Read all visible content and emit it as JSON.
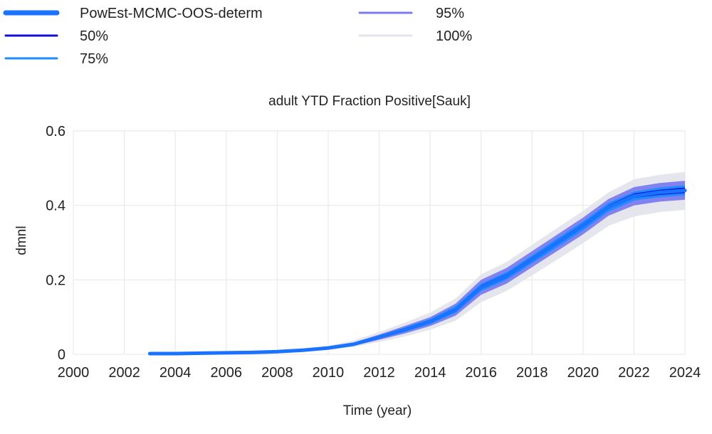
{
  "chart_data": {
    "type": "line",
    "title": "adult YTD Fraction Positive[Sauk]",
    "xlabel": "Time (year)",
    "ylabel": "dmnl",
    "xlim": [
      2000,
      2024
    ],
    "ylim": [
      0,
      0.6
    ],
    "x_ticks": [
      "2000",
      "2002",
      "2004",
      "2006",
      "2008",
      "2010",
      "2012",
      "2014",
      "2016",
      "2018",
      "2020",
      "2022",
      "2024"
    ],
    "y_ticks": [
      "0",
      "0.2",
      "0.4",
      "0.6"
    ],
    "grid": true,
    "legend_placement": "top",
    "x": [
      2003,
      2004,
      2005,
      2006,
      2007,
      2008,
      2009,
      2010,
      2011,
      2012,
      2013,
      2014,
      2015,
      2016,
      2017,
      2018,
      2019,
      2020,
      2021,
      2022,
      2023,
      2024
    ],
    "series": [
      {
        "name": "PowEst-MCMC-OOS-determ",
        "color": "#1a73ff",
        "style": "line",
        "values": [
          0.002,
          0.002,
          0.003,
          0.004,
          0.005,
          0.007,
          0.011,
          0.017,
          0.027,
          0.046,
          0.066,
          0.088,
          0.12,
          0.18,
          0.21,
          0.255,
          0.3,
          0.345,
          0.395,
          0.425,
          0.435,
          0.44
        ]
      },
      {
        "name": "50%",
        "color": "#1010d8",
        "style": "band",
        "lower": [
          0.002,
          0.002,
          0.003,
          0.004,
          0.005,
          0.007,
          0.01,
          0.016,
          0.026,
          0.044,
          0.063,
          0.084,
          0.115,
          0.175,
          0.205,
          0.25,
          0.295,
          0.34,
          0.39,
          0.42,
          0.428,
          0.433
        ],
        "upper": [
          0.002,
          0.002,
          0.003,
          0.004,
          0.005,
          0.008,
          0.012,
          0.018,
          0.029,
          0.048,
          0.069,
          0.092,
          0.125,
          0.186,
          0.216,
          0.261,
          0.306,
          0.351,
          0.401,
          0.432,
          0.442,
          0.448
        ]
      },
      {
        "name": "75%",
        "color": "#1c8cff",
        "style": "band",
        "lower": [
          0.002,
          0.002,
          0.003,
          0.004,
          0.005,
          0.007,
          0.01,
          0.015,
          0.025,
          0.042,
          0.06,
          0.081,
          0.111,
          0.17,
          0.2,
          0.244,
          0.288,
          0.333,
          0.383,
          0.413,
          0.422,
          0.427
        ],
        "upper": [
          0.002,
          0.002,
          0.003,
          0.004,
          0.005,
          0.008,
          0.012,
          0.019,
          0.03,
          0.05,
          0.072,
          0.095,
          0.13,
          0.19,
          0.221,
          0.266,
          0.312,
          0.357,
          0.407,
          0.437,
          0.448,
          0.454
        ]
      },
      {
        "name": "95%",
        "color": "#7b7bf0",
        "style": "band",
        "lower": [
          0.002,
          0.002,
          0.003,
          0.004,
          0.005,
          0.006,
          0.009,
          0.014,
          0.023,
          0.039,
          0.056,
          0.076,
          0.104,
          0.16,
          0.19,
          0.234,
          0.278,
          0.322,
          0.372,
          0.4,
          0.41,
          0.415
        ],
        "upper": [
          0.002,
          0.002,
          0.003,
          0.004,
          0.006,
          0.009,
          0.013,
          0.02,
          0.032,
          0.053,
          0.076,
          0.1,
          0.136,
          0.2,
          0.232,
          0.277,
          0.322,
          0.367,
          0.417,
          0.449,
          0.46,
          0.466
        ]
      },
      {
        "name": "100%",
        "color": "#e4e4ec",
        "style": "band",
        "lower": [
          0.002,
          0.002,
          0.003,
          0.004,
          0.005,
          0.006,
          0.008,
          0.012,
          0.02,
          0.033,
          0.048,
          0.066,
          0.09,
          0.14,
          0.17,
          0.212,
          0.255,
          0.298,
          0.345,
          0.37,
          0.382,
          0.388
        ],
        "upper": [
          0.002,
          0.003,
          0.004,
          0.005,
          0.007,
          0.01,
          0.015,
          0.023,
          0.037,
          0.06,
          0.085,
          0.112,
          0.15,
          0.215,
          0.248,
          0.294,
          0.34,
          0.385,
          0.435,
          0.47,
          0.482,
          0.49
        ]
      }
    ]
  }
}
